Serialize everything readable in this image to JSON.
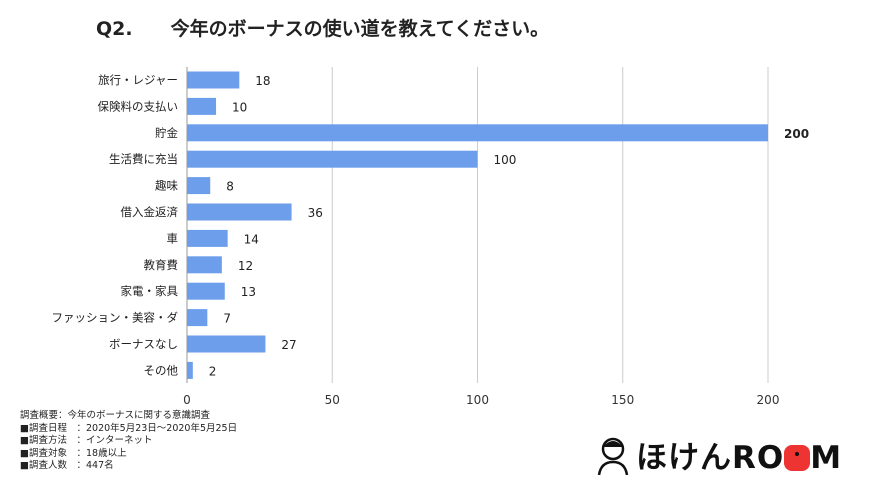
{
  "title": "Q2.　　今年のボーナスの使い道を教えてください。",
  "chart_data": {
    "type": "bar",
    "orientation": "horizontal",
    "categories": [
      "旅行・レジャー",
      "保険料の支払い",
      "貯金",
      "生活費に充当",
      "趣味",
      "借入金返済",
      "車",
      "教育費",
      "家電・家具",
      "ファッション・美容・ダ",
      "ボーナスなし",
      "その他"
    ],
    "values": [
      18,
      10,
      200,
      100,
      8,
      36,
      14,
      12,
      13,
      7,
      27,
      2
    ],
    "xlim": [
      0,
      200
    ],
    "xticks": [
      0,
      50,
      100,
      150,
      200
    ],
    "grid": true,
    "bar_color": "#6d9eeb"
  },
  "notes": [
    "調査概要：今年のボーナスに関する意識調査",
    "■調査日程　：2020年5月23日～2020年5月25日",
    "■調査方法　：インターネット",
    "■調査対象　：18歳以上",
    "■調査人数　：447名"
  ],
  "logo": {
    "text_before": "ほけんRO",
    "text_after": "M",
    "accent": "#e33333"
  }
}
